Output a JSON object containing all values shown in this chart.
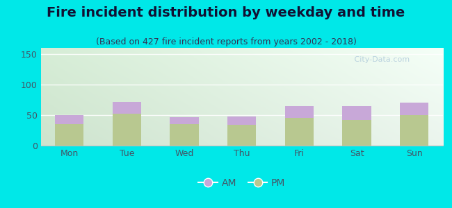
{
  "title": "Fire incident distribution by weekday and time",
  "subtitle": "(Based on 427 fire incident reports from years 2002 - 2018)",
  "days": [
    "Mon",
    "Tue",
    "Wed",
    "Thu",
    "Fri",
    "Sat",
    "Sun"
  ],
  "pm_values": [
    35,
    52,
    35,
    34,
    45,
    42,
    50
  ],
  "am_values": [
    15,
    20,
    11,
    14,
    20,
    23,
    20
  ],
  "am_color": "#c8a8d8",
  "pm_color": "#b8c890",
  "background_color": "#00e8e8",
  "ylim": [
    0,
    160
  ],
  "yticks": [
    0,
    50,
    100,
    150
  ],
  "bar_width": 0.5,
  "title_fontsize": 14,
  "subtitle_fontsize": 9,
  "tick_fontsize": 9,
  "legend_fontsize": 10,
  "title_color": "#111133",
  "subtitle_color": "#333355",
  "tick_color": "#445566",
  "watermark_text": "   City-Data.com",
  "watermark_color": "#a8c4d8",
  "watermark_alpha": 0.75
}
